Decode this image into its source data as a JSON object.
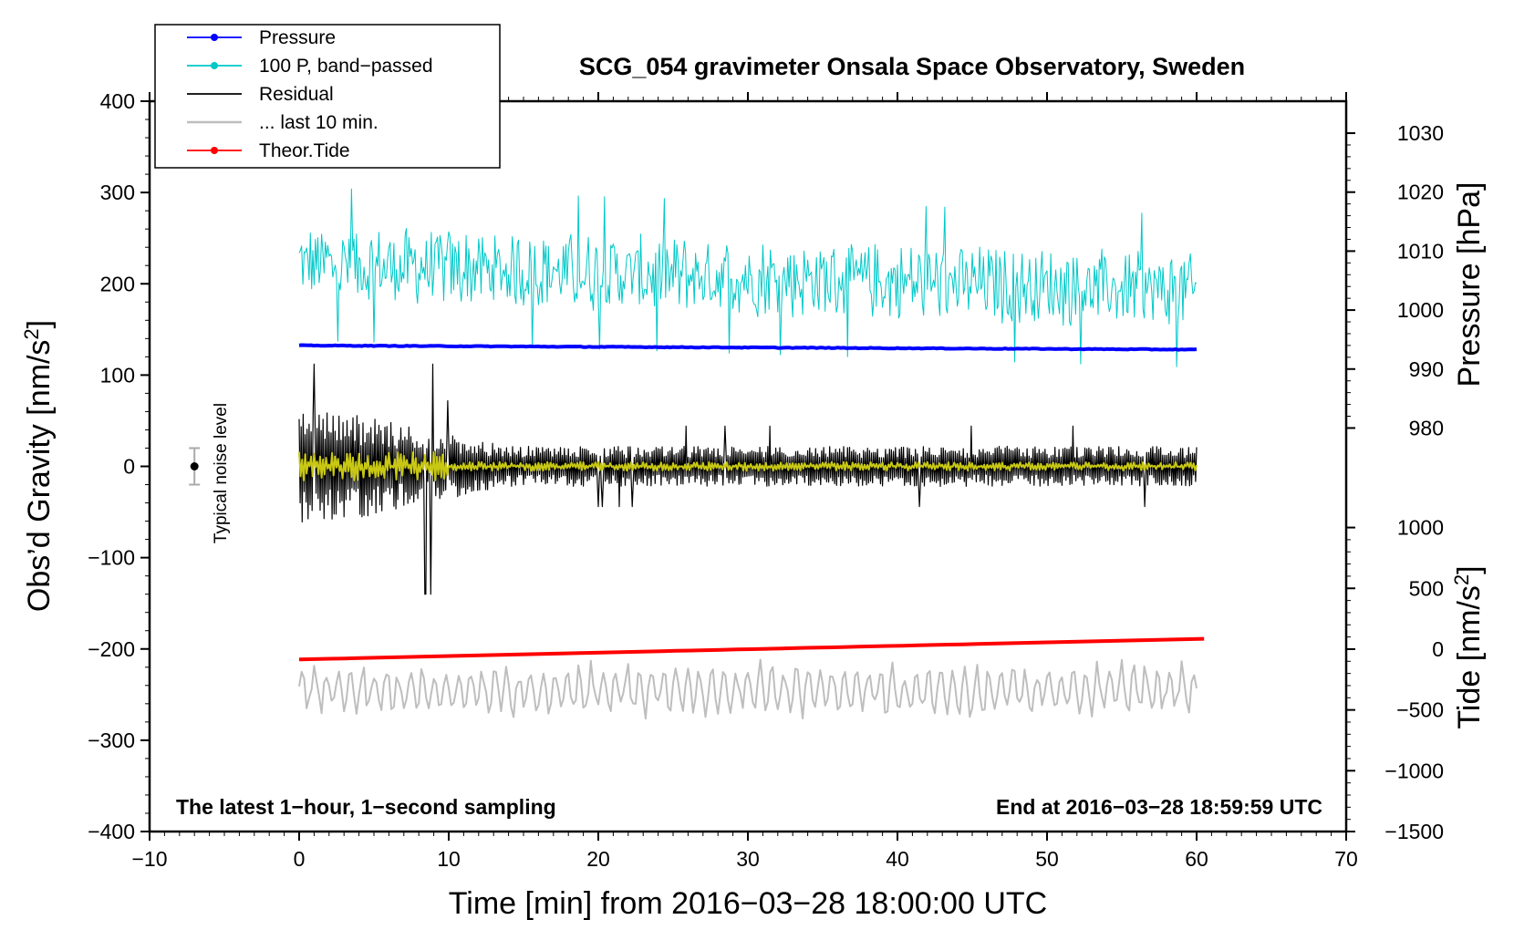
{
  "chart_data": {
    "type": "line",
    "title": "SCG_054 gravimeter Onsala Space Observatory, Sweden",
    "xlabel": "Time [min] from 2016−03−28 18:00:00 UTC",
    "ylabel_left": "Obs’d Gravity [nm/s",
    "ylabel_left_sup": "2",
    "ylabel_left_end": "]",
    "ylabel_pressure": "Pressure [hPa]",
    "ylabel_tide": "Tide [nm/s",
    "ylabel_tide_sup": "2",
    "ylabel_tide_end": "]",
    "xlim": [
      -10,
      70
    ],
    "ylim": [
      -400,
      400
    ],
    "x_ticks": [
      -10,
      0,
      10,
      20,
      30,
      40,
      50,
      60,
      70
    ],
    "x_tick_labels": [
      "−10",
      "0",
      "10",
      "20",
      "30",
      "40",
      "50",
      "60",
      "70"
    ],
    "y_ticks": [
      400,
      300,
      200,
      100,
      0,
      -100,
      -200,
      -300,
      -400
    ],
    "y_tick_labels": [
      "400",
      "300",
      "200",
      "100",
      "0",
      "−100",
      "−200",
      "−300",
      "−400"
    ],
    "pressure_axis": {
      "ticks": [
        1030,
        1020,
        1010,
        1000,
        990,
        980
      ],
      "tick_labels": [
        "1030",
        "1020",
        "1010",
        "1000",
        "990",
        "980"
      ],
      "maps_to_left": [
        [
          1030,
          365
        ],
        [
          980,
          42
        ]
      ]
    },
    "tide_axis": {
      "ticks": [
        1000,
        500,
        0,
        -500,
        -1000,
        -1500
      ],
      "tick_labels": [
        "1000",
        "500",
        "0",
        "−500",
        "−1000",
        "−1500"
      ],
      "maps_to_left": [
        [
          1000,
          -67
        ],
        [
          -1500,
          -400
        ]
      ]
    },
    "legend": [
      {
        "label": "Pressure",
        "color": "#0000ff",
        "marker": true
      },
      {
        "label": "100 P, band−passed",
        "color": "#00c8c8",
        "marker": true
      },
      {
        "label": "Residual",
        "color": "#000000",
        "marker": false
      },
      {
        "label": "... last 10 min.",
        "color": "#bebebe",
        "marker": false
      },
      {
        "label": "Theor.Tide",
        "color": "#ff0000",
        "marker": true
      }
    ],
    "series": [
      {
        "name": "Pressure",
        "color": "#0000ff",
        "axis": "pressure",
        "x_range": [
          0,
          60
        ],
        "start_value": 994.0,
        "end_value": 993.3
      },
      {
        "name": "100 P, band−passed",
        "color": "#00c8c8",
        "axis": "left",
        "x_range": [
          0,
          60
        ],
        "center_start": 222,
        "center_end": 192,
        "amplitude": 38
      },
      {
        "name": "Residual",
        "color": "#000000",
        "axis": "left",
        "x_range": [
          0,
          60
        ],
        "center": 0,
        "amplitude_early": 70,
        "amplitude_late": 22,
        "min": -140,
        "max": 112
      },
      {
        "name": "Residual smoothed",
        "color": "#c8c814",
        "axis": "left",
        "x_range": [
          0,
          60
        ],
        "center": 0,
        "amplitude": 8
      },
      {
        "name": "... last 10 min.",
        "color": "#bebebe",
        "axis": "left",
        "x_range": [
          0,
          60
        ],
        "center": -245,
        "amplitude": 28
      },
      {
        "name": "Theor.Tide",
        "color": "#ff0000",
        "axis": "tide",
        "x_range": [
          0,
          60.5
        ],
        "start_value": -85,
        "end_value": 85
      }
    ],
    "noise_marker": {
      "x": -7,
      "value": 0,
      "error": 20,
      "label": "Typical noise level"
    },
    "annotations": {
      "left": "The latest 1−hour, 1−second sampling",
      "right": "End at 2016−03−28 18:59:59 UTC"
    }
  }
}
